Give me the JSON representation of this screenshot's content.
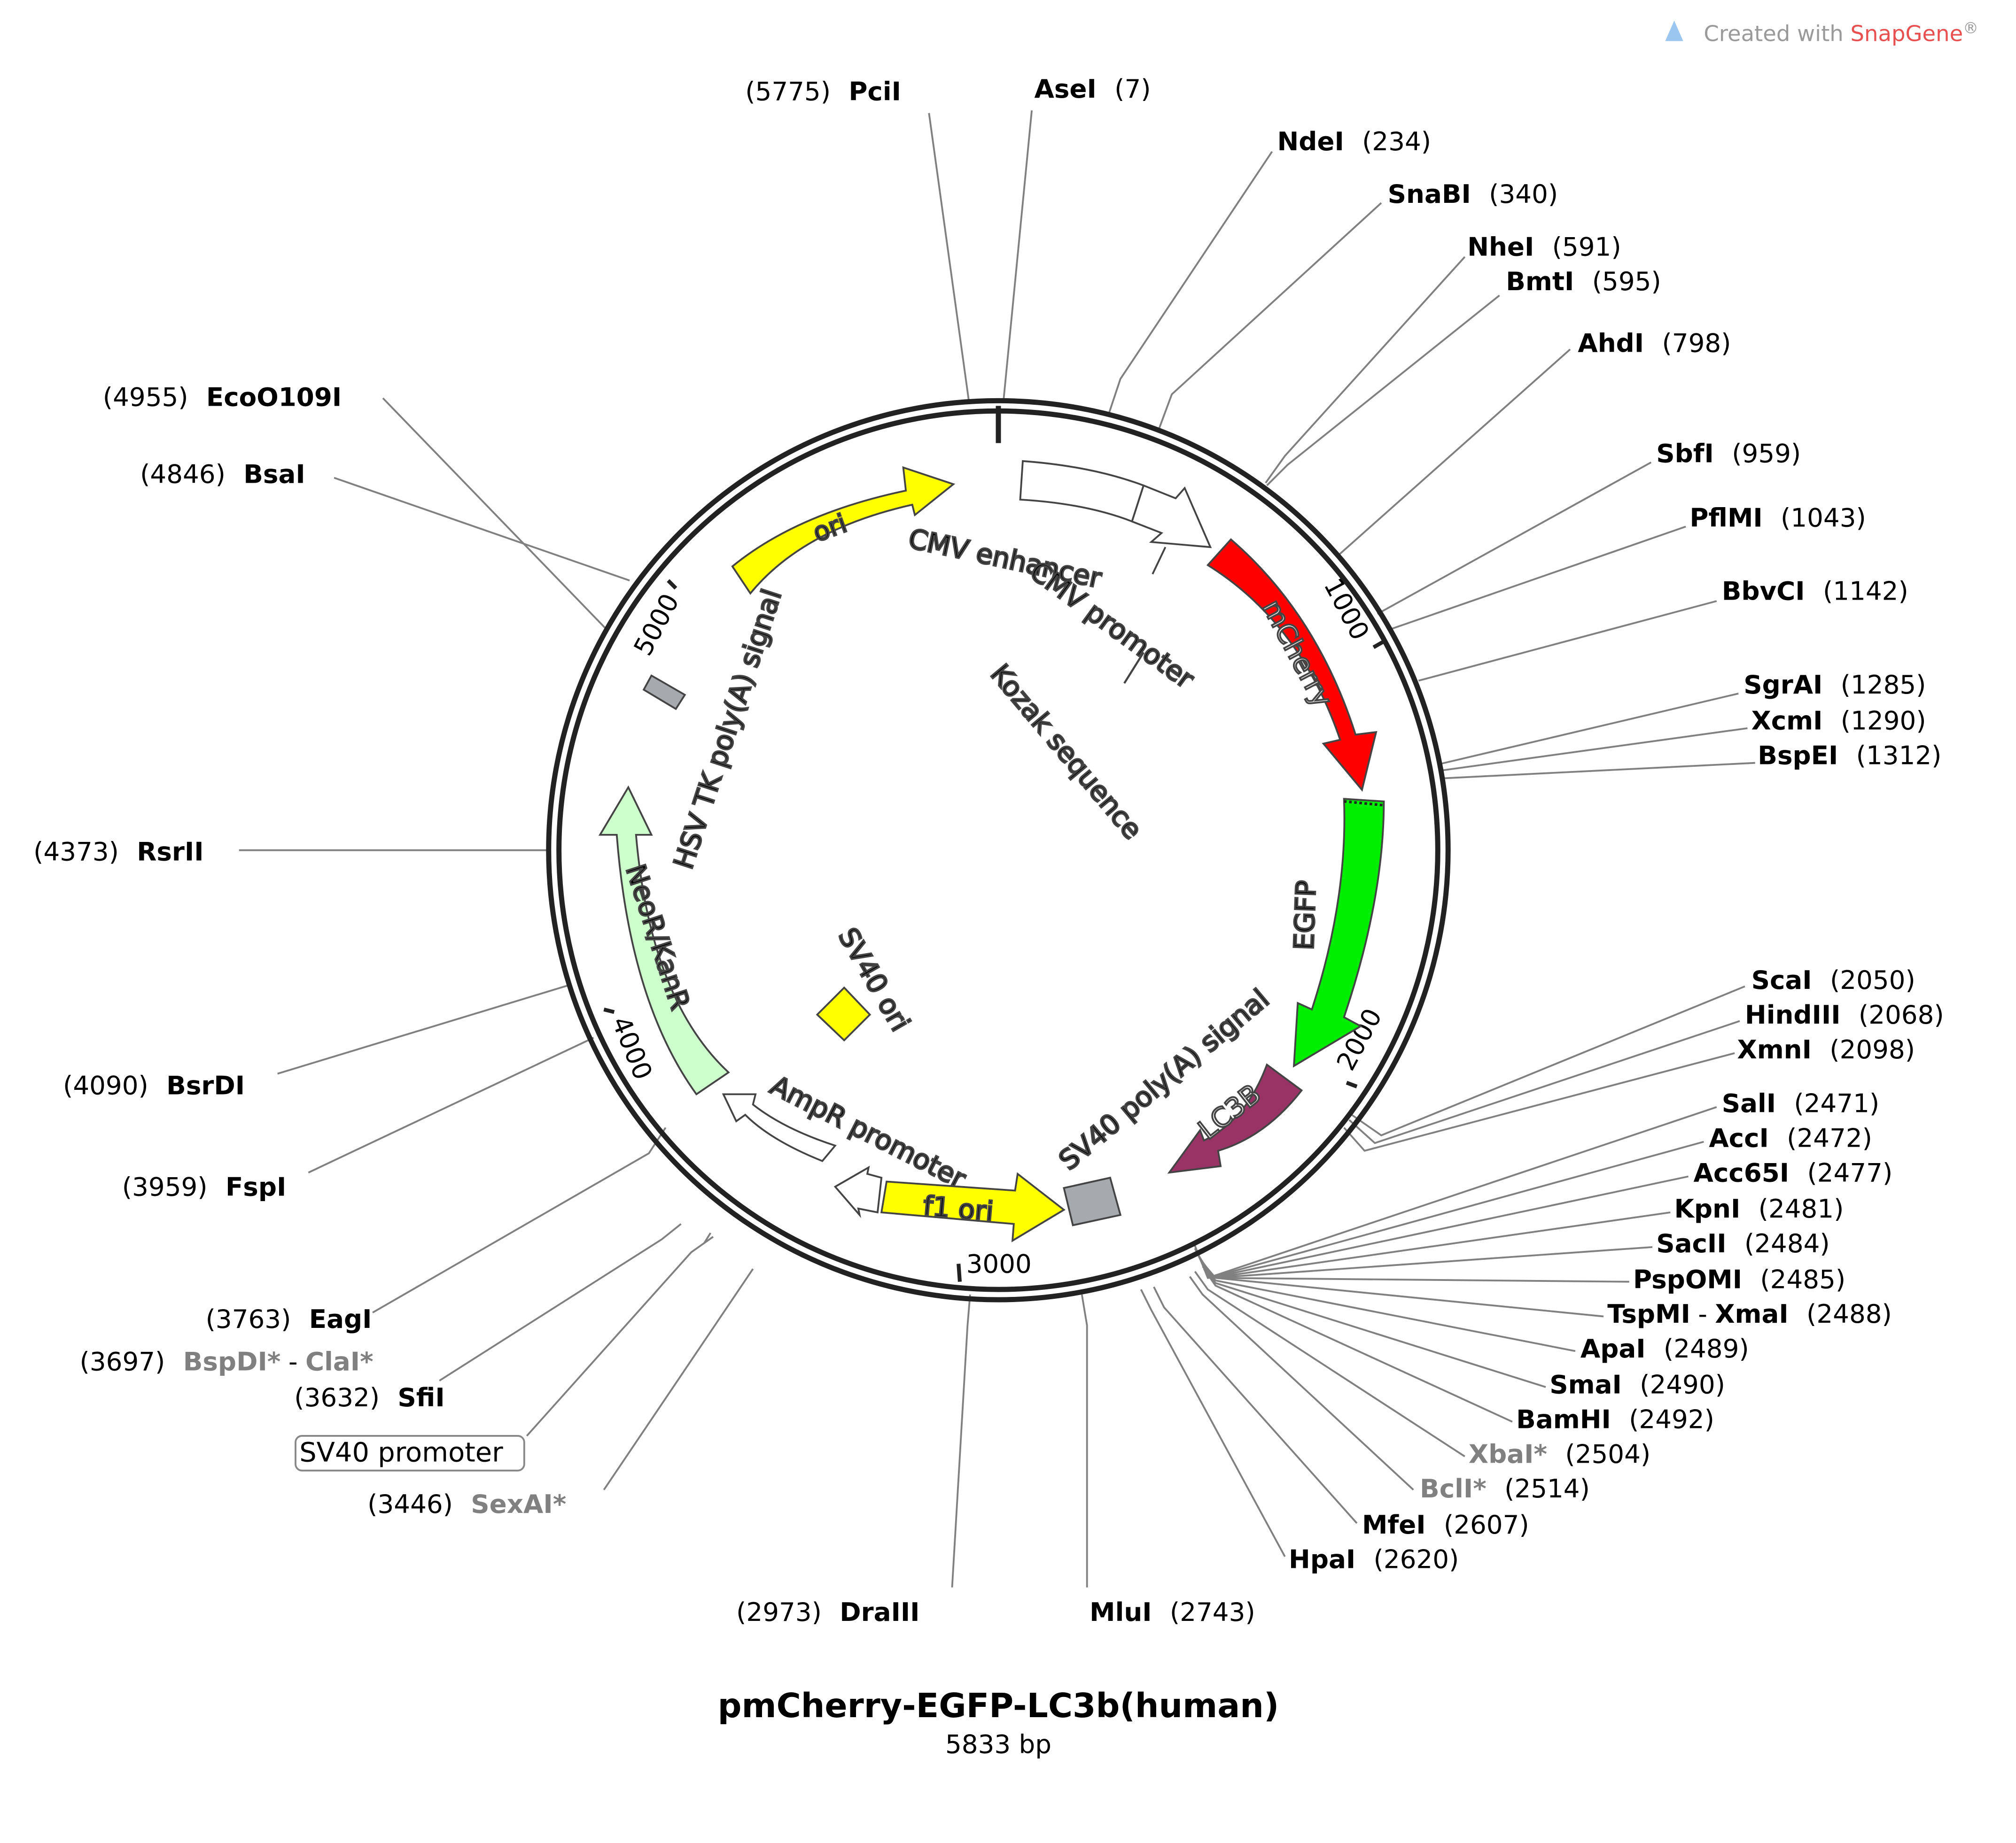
{
  "credit": {
    "prefix": "Created with ",
    "brand": "SnapGene",
    "suffix": "®"
  },
  "plasmid": {
    "name": "pmCherry-EGFP-LC3b(human)",
    "length_label": "5833 bp",
    "length": 5833
  },
  "colors": {
    "ori": "#ffff00",
    "f1_ori": "#ffff00",
    "mCherry": "#ff0000",
    "EGFP": "#00ee00",
    "LC3B": "#993366",
    "NeoR": "#ccffcc",
    "promoter": "#ffffff",
    "polyA": "#a6a9ad",
    "sv40_ori": "#ffff00"
  },
  "ticks": [
    {
      "pos": 1000,
      "label": "1000"
    },
    {
      "pos": 2000,
      "label": "2000"
    },
    {
      "pos": 3000,
      "label": "3000"
    },
    {
      "pos": 4000,
      "label": "4000"
    },
    {
      "pos": 5000,
      "label": "5000"
    }
  ],
  "features": [
    {
      "id": "ori",
      "label": "ori",
      "inside": true,
      "color": "#ffff00"
    },
    {
      "id": "cmv-enhancer",
      "label": "CMV enhancer",
      "color": "#ffffff"
    },
    {
      "id": "cmv-promoter",
      "label": "CMV promoter",
      "color": "#ffffff"
    },
    {
      "id": "kozak",
      "label": "Kozak sequence"
    },
    {
      "id": "mcherry",
      "label": "mCherry",
      "inside": true,
      "color": "#ff0000"
    },
    {
      "id": "egfp",
      "label": "EGFP",
      "color": "#00ee00"
    },
    {
      "id": "sv40-polya",
      "label": "SV40 poly(A) signal",
      "color": "#a6a9ad"
    },
    {
      "id": "lc3b",
      "label": "LC3B",
      "inside": true,
      "color": "#993366"
    },
    {
      "id": "f1-ori",
      "label": "f1 ori",
      "inside": true,
      "color": "#ffff00"
    },
    {
      "id": "ampr-promoter",
      "label": "AmpR promoter",
      "color": "#ffffff"
    },
    {
      "id": "sv40-ori",
      "label": "SV40 ori",
      "color": "#ffff00"
    },
    {
      "id": "neor",
      "label": "NeoR/KanR",
      "inside": true,
      "color": "#ccffcc"
    },
    {
      "id": "hsv-polya",
      "label": "HSV TK poly(A) signal",
      "color": "#a6a9ad"
    },
    {
      "id": "sv40-promoter",
      "label": "SV40 promoter"
    }
  ],
  "enzymes": [
    {
      "name": "PciI",
      "pos": "(5775)",
      "side": "left"
    },
    {
      "name": "AseI",
      "pos": "(7)",
      "side": "right"
    },
    {
      "name": "NdeI",
      "pos": "(234)",
      "side": "right"
    },
    {
      "name": "SnaBI",
      "pos": "(340)",
      "side": "right"
    },
    {
      "name": "NheI",
      "pos": "(591)",
      "side": "right"
    },
    {
      "name": "BmtI",
      "pos": "(595)",
      "side": "right"
    },
    {
      "name": "AhdI",
      "pos": "(798)",
      "side": "right"
    },
    {
      "name": "SbfI",
      "pos": "(959)",
      "side": "right"
    },
    {
      "name": "PflMI",
      "pos": "(1043)",
      "side": "right"
    },
    {
      "name": "BbvCI",
      "pos": "(1142)",
      "side": "right"
    },
    {
      "name": "SgrAI",
      "pos": "(1285)",
      "side": "right"
    },
    {
      "name": "XcmI",
      "pos": "(1290)",
      "side": "right"
    },
    {
      "name": "BspEI",
      "pos": "(1312)",
      "side": "right"
    },
    {
      "name": "ScaI",
      "pos": "(2050)",
      "side": "right"
    },
    {
      "name": "HindIII",
      "pos": "(2068)",
      "side": "right"
    },
    {
      "name": "XmnI",
      "pos": "(2098)",
      "side": "right"
    },
    {
      "name": "SalI",
      "pos": "(2471)",
      "side": "right"
    },
    {
      "name": "AccI",
      "pos": "(2472)",
      "side": "right"
    },
    {
      "name": "Acc65I",
      "pos": "(2477)",
      "side": "right"
    },
    {
      "name": "KpnI",
      "pos": "(2481)",
      "side": "right"
    },
    {
      "name": "SacII",
      "pos": "(2484)",
      "side": "right"
    },
    {
      "name": "PspOMI",
      "pos": "(2485)",
      "side": "right"
    },
    {
      "name": "TspMI",
      "name2": "XmaI",
      "pos": "(2488)",
      "side": "right"
    },
    {
      "name": "ApaI",
      "pos": "(2489)",
      "side": "right"
    },
    {
      "name": "SmaI",
      "pos": "(2490)",
      "side": "right"
    },
    {
      "name": "BamHI",
      "pos": "(2492)",
      "side": "right"
    },
    {
      "name": "XbaI*",
      "pos": "(2504)",
      "side": "right",
      "gray": true
    },
    {
      "name": "BclI*",
      "pos": "(2514)",
      "side": "right",
      "gray": true
    },
    {
      "name": "MfeI",
      "pos": "(2607)",
      "side": "right"
    },
    {
      "name": "HpaI",
      "pos": "(2620)",
      "side": "right"
    },
    {
      "name": "MluI",
      "pos": "(2743)",
      "side": "right"
    },
    {
      "name": "DraIII",
      "pos": "(2973)",
      "side": "left"
    },
    {
      "name": "SexAI*",
      "pos": "(3446)",
      "side": "left",
      "gray": true
    },
    {
      "name": "SfiI",
      "pos": "(3632)",
      "side": "left"
    },
    {
      "name": "BspDI*",
      "name2": "ClaI*",
      "pos": "(3697)",
      "side": "left",
      "gray": true
    },
    {
      "name": "EagI",
      "pos": "(3763)",
      "side": "left"
    },
    {
      "name": "FspI",
      "pos": "(3959)",
      "side": "left"
    },
    {
      "name": "BsrDI",
      "pos": "(4090)",
      "side": "left"
    },
    {
      "name": "RsrII",
      "pos": "(4373)",
      "side": "left"
    },
    {
      "name": "BsaI",
      "pos": "(4846)",
      "side": "left"
    },
    {
      "name": "EcoO109I",
      "pos": "(4955)",
      "side": "left"
    }
  ]
}
